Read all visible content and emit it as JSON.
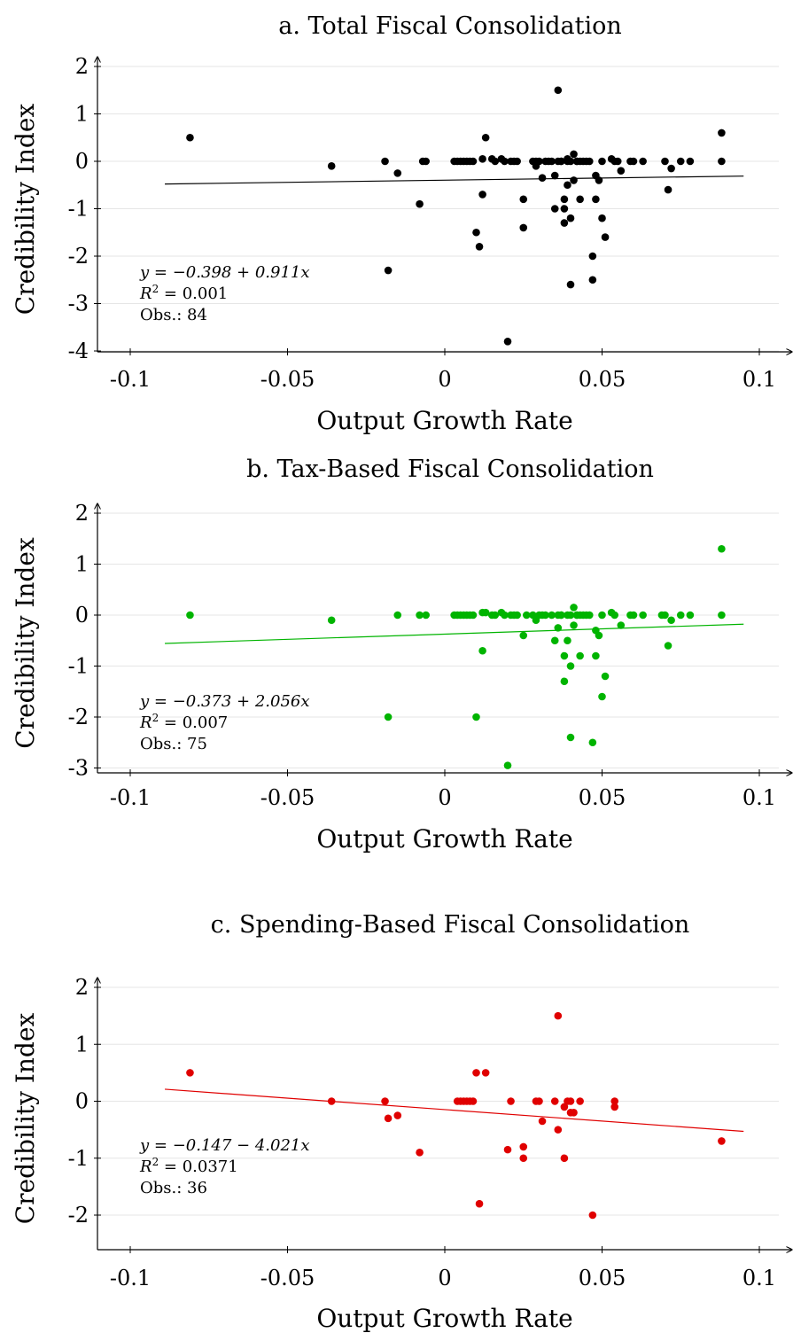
{
  "chart_data": [
    {
      "type": "scatter",
      "title": "a. Total Fiscal Consolidation",
      "xlabel": "Output Growth Rate",
      "ylabel": "Credibility Index",
      "xlim": [
        -0.1,
        0.1
      ],
      "ylim": [
        -4,
        2
      ],
      "xticks": [
        "-0.1",
        "-0.05",
        "0",
        "0.05",
        "0.1"
      ],
      "yticks": [
        "2",
        "1",
        "0",
        "-1",
        "-2",
        "-3",
        "-4"
      ],
      "color": "#000000",
      "grid": true,
      "annotation": {
        "equation": "y = −0.398 + 0.911x",
        "r2": "= 0.001",
        "obs": "Obs.: 84"
      },
      "fit": {
        "intercept": -0.398,
        "slope": 0.911,
        "x_range": [
          -0.089,
          0.095
        ]
      },
      "points": [
        [
          -0.081,
          0.5
        ],
        [
          -0.036,
          -0.1
        ],
        [
          -0.019,
          0.0
        ],
        [
          -0.018,
          -2.3
        ],
        [
          -0.015,
          -0.25
        ],
        [
          -0.008,
          -0.9
        ],
        [
          -0.007,
          0.0
        ],
        [
          -0.006,
          0.0
        ],
        [
          0.003,
          0.0
        ],
        [
          0.004,
          0.0
        ],
        [
          0.005,
          0.0
        ],
        [
          0.006,
          0.0
        ],
        [
          0.007,
          0.0
        ],
        [
          0.008,
          0.0
        ],
        [
          0.009,
          0.0
        ],
        [
          0.01,
          -1.5
        ],
        [
          0.011,
          -1.8
        ],
        [
          0.012,
          0.05
        ],
        [
          0.012,
          -0.7
        ],
        [
          0.013,
          0.5
        ],
        [
          0.015,
          0.05
        ],
        [
          0.016,
          0.0
        ],
        [
          0.018,
          0.05
        ],
        [
          0.019,
          0.0
        ],
        [
          0.02,
          -3.8
        ],
        [
          0.021,
          0.0
        ],
        [
          0.022,
          0.0
        ],
        [
          0.023,
          0.0
        ],
        [
          0.025,
          -0.8
        ],
        [
          0.025,
          -1.4
        ],
        [
          0.028,
          0.0
        ],
        [
          0.029,
          0.0
        ],
        [
          0.029,
          -0.1
        ],
        [
          0.03,
          0.0
        ],
        [
          0.031,
          -0.35
        ],
        [
          0.032,
          0.0
        ],
        [
          0.033,
          0.0
        ],
        [
          0.034,
          0.0
        ],
        [
          0.035,
          -0.3
        ],
        [
          0.035,
          -1.0
        ],
        [
          0.036,
          1.5
        ],
        [
          0.036,
          0.0
        ],
        [
          0.037,
          0.0
        ],
        [
          0.038,
          -0.8
        ],
        [
          0.038,
          -1.0
        ],
        [
          0.038,
          -1.3
        ],
        [
          0.039,
          0.05
        ],
        [
          0.039,
          -0.5
        ],
        [
          0.039,
          0.0
        ],
        [
          0.04,
          -1.2
        ],
        [
          0.04,
          -2.6
        ],
        [
          0.04,
          0.0
        ],
        [
          0.041,
          0.15
        ],
        [
          0.041,
          -0.4
        ],
        [
          0.042,
          0.0
        ],
        [
          0.043,
          -0.8
        ],
        [
          0.043,
          0.0
        ],
        [
          0.044,
          0.0
        ],
        [
          0.045,
          0.0
        ],
        [
          0.046,
          0.0
        ],
        [
          0.047,
          -2.0
        ],
        [
          0.047,
          -2.5
        ],
        [
          0.048,
          -0.3
        ],
        [
          0.048,
          -0.8
        ],
        [
          0.049,
          -0.4
        ],
        [
          0.05,
          0.0
        ],
        [
          0.05,
          -1.2
        ],
        [
          0.051,
          -1.6
        ],
        [
          0.053,
          0.05
        ],
        [
          0.054,
          0.0
        ],
        [
          0.055,
          0.0
        ],
        [
          0.056,
          -0.2
        ],
        [
          0.059,
          0.0
        ],
        [
          0.06,
          0.0
        ],
        [
          0.063,
          0.0
        ],
        [
          0.07,
          0.0
        ],
        [
          0.071,
          -0.6
        ],
        [
          0.072,
          -0.15
        ],
        [
          0.075,
          0.0
        ],
        [
          0.078,
          0.0
        ],
        [
          0.088,
          0.6
        ],
        [
          0.088,
          0.0
        ],
        [
          0.037,
          0.0
        ],
        [
          0.042,
          0.0
        ]
      ]
    },
    {
      "type": "scatter",
      "title": "b. Tax-Based Fiscal Consolidation",
      "xlabel": "Output Growth Rate",
      "ylabel": "Credibility Index",
      "xlim": [
        -0.1,
        0.1
      ],
      "ylim": [
        -3,
        2
      ],
      "xticks": [
        "-0.1",
        "-0.05",
        "0",
        "0.05",
        "0.1"
      ],
      "yticks": [
        "2",
        "1",
        "0",
        "-1",
        "-2",
        "-3"
      ],
      "color": "#00b400",
      "grid": true,
      "annotation": {
        "equation": "y = −0.373 + 2.056x",
        "r2": "= 0.007",
        "obs": "Obs.: 75"
      },
      "fit": {
        "intercept": -0.373,
        "slope": 2.056,
        "x_range": [
          -0.089,
          0.095
        ]
      },
      "points": [
        [
          -0.081,
          0.0
        ],
        [
          -0.036,
          -0.1
        ],
        [
          -0.018,
          -2.0
        ],
        [
          -0.015,
          0.0
        ],
        [
          -0.008,
          0.0
        ],
        [
          -0.006,
          0.0
        ],
        [
          0.003,
          0.0
        ],
        [
          0.004,
          0.0
        ],
        [
          0.005,
          0.0
        ],
        [
          0.006,
          0.0
        ],
        [
          0.007,
          0.0
        ],
        [
          0.008,
          0.0
        ],
        [
          0.009,
          0.0
        ],
        [
          0.01,
          -2.0
        ],
        [
          0.012,
          0.05
        ],
        [
          0.012,
          -0.7
        ],
        [
          0.013,
          0.05
        ],
        [
          0.015,
          0.0
        ],
        [
          0.016,
          0.0
        ],
        [
          0.018,
          0.05
        ],
        [
          0.019,
          0.0
        ],
        [
          0.02,
          -2.95
        ],
        [
          0.021,
          0.0
        ],
        [
          0.022,
          0.0
        ],
        [
          0.023,
          0.0
        ],
        [
          0.025,
          -0.4
        ],
        [
          0.026,
          0.0
        ],
        [
          0.028,
          0.0
        ],
        [
          0.029,
          -0.1
        ],
        [
          0.03,
          0.0
        ],
        [
          0.031,
          0.0
        ],
        [
          0.032,
          0.0
        ],
        [
          0.034,
          0.0
        ],
        [
          0.035,
          -0.5
        ],
        [
          0.036,
          -0.25
        ],
        [
          0.036,
          0.0
        ],
        [
          0.037,
          0.0
        ],
        [
          0.038,
          -0.8
        ],
        [
          0.038,
          -1.3
        ],
        [
          0.039,
          -0.5
        ],
        [
          0.039,
          0.0
        ],
        [
          0.04,
          -1.0
        ],
        [
          0.04,
          -2.4
        ],
        [
          0.04,
          0.0
        ],
        [
          0.041,
          0.15
        ],
        [
          0.041,
          -0.2
        ],
        [
          0.042,
          0.0
        ],
        [
          0.043,
          -0.8
        ],
        [
          0.043,
          0.0
        ],
        [
          0.044,
          0.0
        ],
        [
          0.045,
          0.0
        ],
        [
          0.046,
          0.0
        ],
        [
          0.047,
          -2.5
        ],
        [
          0.048,
          -0.3
        ],
        [
          0.048,
          -0.8
        ],
        [
          0.049,
          -0.4
        ],
        [
          0.05,
          0.0
        ],
        [
          0.05,
          -1.6
        ],
        [
          0.051,
          -1.2
        ],
        [
          0.053,
          0.05
        ],
        [
          0.054,
          0.0
        ],
        [
          0.056,
          -0.2
        ],
        [
          0.059,
          0.0
        ],
        [
          0.06,
          0.0
        ],
        [
          0.063,
          0.0
        ],
        [
          0.069,
          0.0
        ],
        [
          0.07,
          0.0
        ],
        [
          0.071,
          -0.6
        ],
        [
          0.072,
          -0.1
        ],
        [
          0.075,
          0.0
        ],
        [
          0.078,
          0.0
        ],
        [
          0.088,
          1.3
        ],
        [
          0.088,
          0.0
        ],
        [
          0.037,
          0.0
        ],
        [
          0.042,
          0.0
        ]
      ]
    },
    {
      "type": "scatter",
      "title": "c. Spending-Based Fiscal Consolidation",
      "xlabel": "Output Growth Rate",
      "ylabel": "Credibility Index",
      "xlim": [
        -0.1,
        0.1
      ],
      "ylim": [
        -2.5,
        2
      ],
      "xticks": [
        "-0.1",
        "-0.05",
        "0",
        "0.05",
        "0.1"
      ],
      "yticks": [
        "2",
        "1",
        "0",
        "-1",
        "-2"
      ],
      "color": "#e00000",
      "grid": true,
      "annotation": {
        "equation": "y = −0.147 − 4.021x",
        "r2": "= 0.0371",
        "obs": "Obs.: 36"
      },
      "fit": {
        "intercept": -0.147,
        "slope": -4.021,
        "x_range": [
          -0.089,
          0.095
        ]
      },
      "points": [
        [
          -0.081,
          0.5
        ],
        [
          -0.036,
          0.0
        ],
        [
          -0.019,
          0.0
        ],
        [
          -0.018,
          -0.3
        ],
        [
          -0.015,
          -0.25
        ],
        [
          -0.008,
          -0.9
        ],
        [
          0.004,
          0.0
        ],
        [
          0.005,
          0.0
        ],
        [
          0.007,
          0.0
        ],
        [
          0.009,
          0.0
        ],
        [
          0.01,
          0.5
        ],
        [
          0.011,
          -1.8
        ],
        [
          0.013,
          0.5
        ],
        [
          0.02,
          -0.85
        ],
        [
          0.021,
          0.0
        ],
        [
          0.025,
          -0.8
        ],
        [
          0.025,
          -1.0
        ],
        [
          0.029,
          0.0
        ],
        [
          0.03,
          0.0
        ],
        [
          0.031,
          -0.35
        ],
        [
          0.035,
          0.0
        ],
        [
          0.036,
          1.5
        ],
        [
          0.036,
          -0.5
        ],
        [
          0.038,
          -1.0
        ],
        [
          0.038,
          -0.1
        ],
        [
          0.039,
          0.0
        ],
        [
          0.04,
          0.0
        ],
        [
          0.04,
          -0.2
        ],
        [
          0.041,
          -0.2
        ],
        [
          0.043,
          0.0
        ],
        [
          0.047,
          -2.0
        ],
        [
          0.054,
          0.0
        ],
        [
          0.054,
          -0.1
        ],
        [
          0.088,
          -0.7
        ],
        [
          0.006,
          0.0
        ],
        [
          0.008,
          0.0
        ]
      ]
    }
  ]
}
